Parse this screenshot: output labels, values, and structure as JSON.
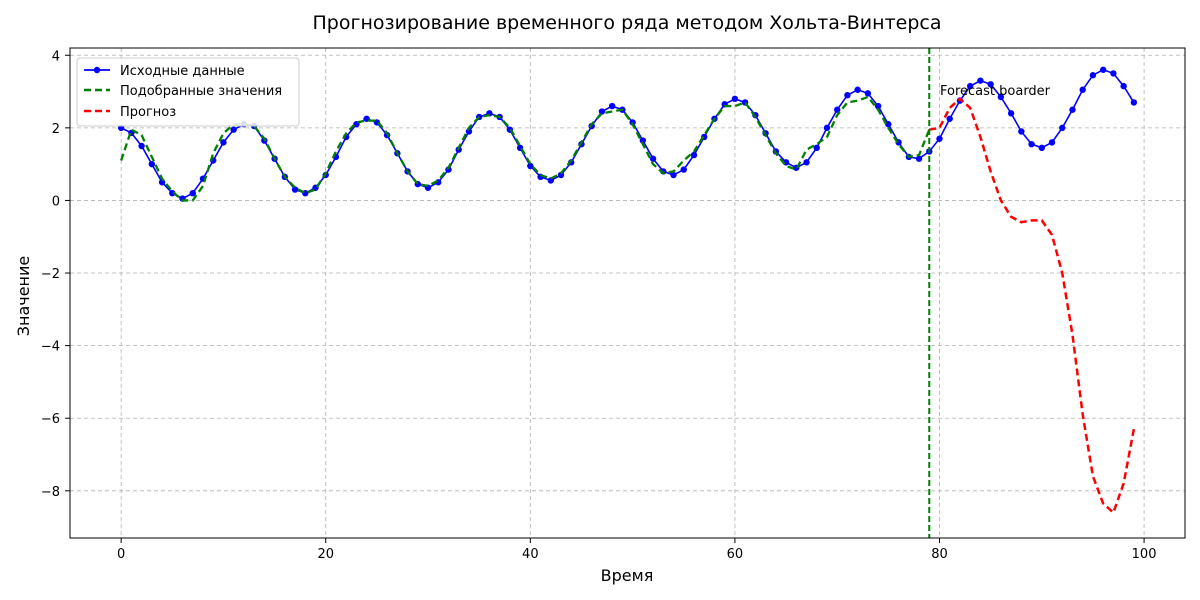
{
  "chart_data": {
    "type": "line",
    "title": "Прогнозирование временного ряда методом Хольта-Винтерса",
    "xlabel": "Время",
    "ylabel": "Значение",
    "xlim": [
      -5,
      104
    ],
    "ylim": [
      -9.3,
      4.2
    ],
    "xticks": [
      0,
      20,
      40,
      60,
      80,
      100
    ],
    "yticks": [
      -8,
      -6,
      -4,
      -2,
      0,
      2,
      4
    ],
    "grid": true,
    "legend_position": "top-left",
    "forecast_boundary_x": 79,
    "annotation": "Forecast boarder",
    "colors": {
      "original": "#0000ff",
      "fitted": "#008000",
      "forecast": "#ff0000",
      "grid": "#b0b0b0"
    },
    "series": [
      {
        "name": "Исходные данные",
        "style": "solid-with-markers",
        "x": [
          0,
          1,
          2,
          3,
          4,
          5,
          6,
          7,
          8,
          9,
          10,
          11,
          12,
          13,
          14,
          15,
          16,
          17,
          18,
          19,
          20,
          21,
          22,
          23,
          24,
          25,
          26,
          27,
          28,
          29,
          30,
          31,
          32,
          33,
          34,
          35,
          36,
          37,
          38,
          39,
          40,
          41,
          42,
          43,
          44,
          45,
          46,
          47,
          48,
          49,
          50,
          51,
          52,
          53,
          54,
          55,
          56,
          57,
          58,
          59,
          60,
          61,
          62,
          63,
          64,
          65,
          66,
          67,
          68,
          69,
          70,
          71,
          72,
          73,
          74,
          75,
          76,
          77,
          78,
          79,
          80,
          81,
          82,
          83,
          84,
          85,
          86,
          87,
          88,
          89,
          90,
          91,
          92,
          93,
          94,
          95,
          96,
          97,
          98,
          99
        ],
        "values": [
          2.0,
          1.86,
          1.5,
          1.0,
          0.5,
          0.2,
          0.05,
          0.2,
          0.6,
          1.1,
          1.6,
          1.95,
          2.1,
          2.05,
          1.65,
          1.15,
          0.65,
          0.3,
          0.2,
          0.35,
          0.7,
          1.2,
          1.75,
          2.1,
          2.25,
          2.15,
          1.8,
          1.3,
          0.8,
          0.45,
          0.35,
          0.5,
          0.85,
          1.4,
          1.9,
          2.3,
          2.4,
          2.3,
          1.95,
          1.45,
          0.95,
          0.65,
          0.55,
          0.7,
          1.05,
          1.55,
          2.05,
          2.45,
          2.6,
          2.5,
          2.15,
          1.65,
          1.15,
          0.8,
          0.7,
          0.85,
          1.25,
          1.75,
          2.25,
          2.65,
          2.8,
          2.7,
          2.35,
          1.85,
          1.35,
          1.05,
          0.9,
          1.05,
          1.45,
          2.0,
          2.5,
          2.9,
          3.05,
          2.95,
          2.6,
          2.1,
          1.6,
          1.2,
          1.15,
          1.35,
          1.7,
          2.25,
          2.75,
          3.15,
          3.3,
          3.2,
          2.85,
          2.4,
          1.9,
          1.55,
          1.45,
          1.6,
          2.0,
          2.5,
          3.05,
          3.45,
          3.6,
          3.5,
          3.15,
          2.7
        ]
      },
      {
        "name": "Подобранные значения",
        "style": "dashed",
        "x": [
          0,
          1,
          2,
          3,
          4,
          5,
          6,
          7,
          8,
          9,
          10,
          11,
          12,
          13,
          14,
          15,
          16,
          17,
          18,
          19,
          20,
          21,
          22,
          23,
          24,
          25,
          26,
          27,
          28,
          29,
          30,
          31,
          32,
          33,
          34,
          35,
          36,
          37,
          38,
          39,
          40,
          41,
          42,
          43,
          44,
          45,
          46,
          47,
          48,
          49,
          50,
          51,
          52,
          53,
          54,
          55,
          56,
          57,
          58,
          59,
          60,
          61,
          62,
          63,
          64,
          65,
          66,
          67,
          68,
          69,
          70,
          71,
          72,
          73,
          74,
          75,
          76,
          77,
          78,
          79
        ],
        "values": [
          1.1,
          1.95,
          1.8,
          1.2,
          0.6,
          0.25,
          0.0,
          0.0,
          0.4,
          1.3,
          1.85,
          2.1,
          2.1,
          2.05,
          1.7,
          1.15,
          0.65,
          0.35,
          0.2,
          0.3,
          0.75,
          1.35,
          1.85,
          2.15,
          2.2,
          2.2,
          1.85,
          1.3,
          0.8,
          0.45,
          0.4,
          0.55,
          0.9,
          1.45,
          2.0,
          2.3,
          2.35,
          2.3,
          2.0,
          1.5,
          1.0,
          0.7,
          0.6,
          0.75,
          1.1,
          1.6,
          2.1,
          2.4,
          2.45,
          2.5,
          2.1,
          1.55,
          1.0,
          0.75,
          0.8,
          1.1,
          1.35,
          1.8,
          2.25,
          2.6,
          2.6,
          2.7,
          2.3,
          1.8,
          1.3,
          0.95,
          0.85,
          1.4,
          1.55,
          1.75,
          2.35,
          2.7,
          2.75,
          2.85,
          2.5,
          2.0,
          1.55,
          1.2,
          1.25,
          1.95
        ]
      },
      {
        "name": "Прогноз",
        "style": "dashed",
        "x": [
          79,
          80,
          81,
          82,
          83,
          84,
          85,
          86,
          87,
          88,
          89,
          90,
          91,
          92,
          93,
          94,
          95,
          96,
          97,
          98,
          99
        ],
        "values": [
          1.95,
          2.0,
          2.55,
          2.8,
          2.55,
          1.75,
          0.8,
          0.0,
          -0.45,
          -0.6,
          -0.55,
          -0.55,
          -0.95,
          -2.0,
          -3.7,
          -5.9,
          -7.6,
          -8.35,
          -8.6,
          -7.8,
          -6.3
        ]
      }
    ]
  }
}
